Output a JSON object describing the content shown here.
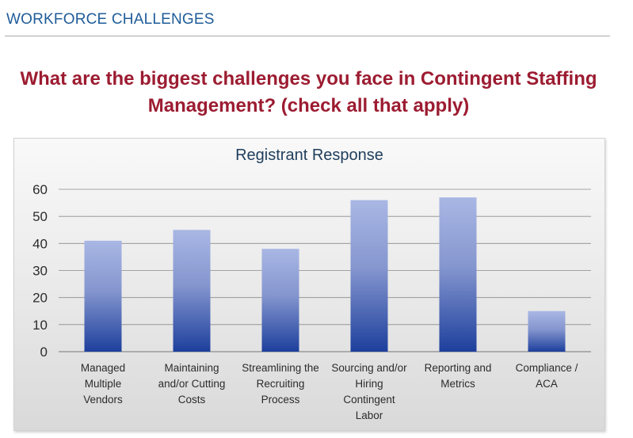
{
  "header": {
    "section_title": "WORKFORCE CHALLENGES",
    "question_line1": "What are the biggest challenges you face in Contingent Staffing",
    "question_line2": "Management? (check all that apply)"
  },
  "colors": {
    "section_title": "#1f5c99",
    "question": "#9c1c31",
    "bar_top": "#a9b7e4",
    "bar_bottom": "#1d3f9c",
    "gridline": "#8c8c8c"
  },
  "chart_data": {
    "type": "bar",
    "title": "Registrant Response",
    "categories": [
      [
        "Managed",
        "Multiple",
        "Vendors"
      ],
      [
        "Maintaining",
        "and/or Cutting",
        "Costs"
      ],
      [
        "Streamlining the",
        "Recruiting",
        "Process"
      ],
      [
        "Sourcing and/or",
        "Hiring",
        "Contingent",
        "Labor"
      ],
      [
        "Reporting and",
        "Metrics"
      ],
      [
        "Compliance /",
        "ACA"
      ]
    ],
    "values": [
      41,
      45,
      38,
      56,
      57,
      15
    ],
    "xlabel": "",
    "ylabel": "",
    "ylim": [
      0,
      60
    ],
    "yticks": [
      0,
      10,
      20,
      30,
      40,
      50,
      60
    ],
    "grid": true,
    "legend": "none"
  }
}
